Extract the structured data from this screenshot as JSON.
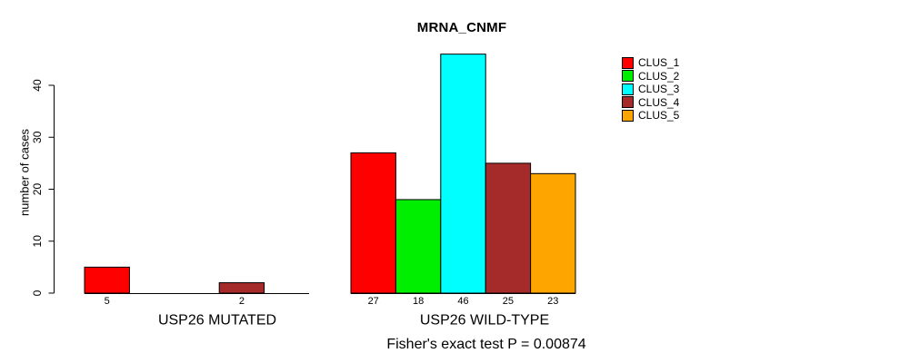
{
  "chart_data": {
    "type": "bar",
    "title": "MRNA_CNMF",
    "ylabel": "number of cases",
    "xlabel": "",
    "ylim": [
      0,
      46
    ],
    "yticks": [
      0,
      10,
      20,
      30,
      40
    ],
    "grid": false,
    "legend_position": "top-right",
    "series": [
      "CLUS_1",
      "CLUS_2",
      "CLUS_3",
      "CLUS_4",
      "CLUS_5"
    ],
    "colors": [
      "#ff0000",
      "#00ee00",
      "#00ffff",
      "#a52a2a",
      "#ffa500"
    ],
    "groups": [
      {
        "label": "USP26 MUTATED",
        "values": [
          5,
          0,
          0,
          2,
          0
        ]
      },
      {
        "label": "USP26 WILD-TYPE",
        "values": [
          27,
          18,
          46,
          25,
          23
        ]
      }
    ],
    "zero_bars_unlabeled": true,
    "annotation": "Fisher's exact test P = 0.00874"
  }
}
